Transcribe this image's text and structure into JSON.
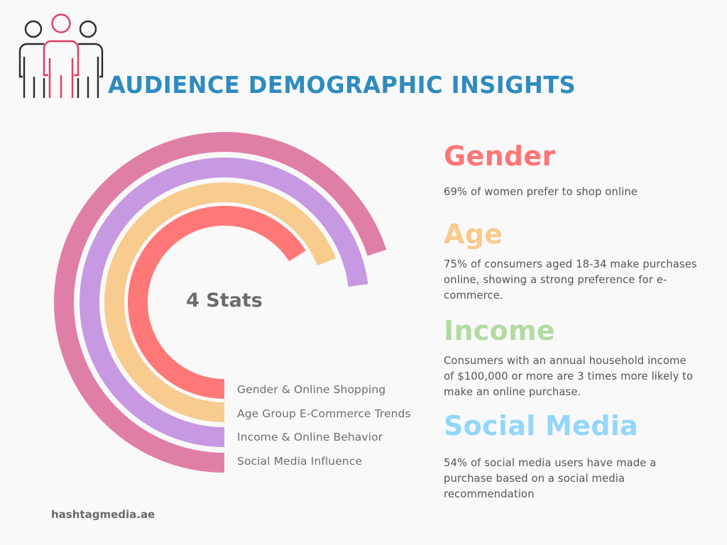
{
  "header": {
    "title": "AUDIENCE DEMOGRAPHIC INSIGHTS",
    "icon": "people-group-icon",
    "title_color": "#2e8bbf"
  },
  "chart": {
    "center_label": "4 Stats",
    "legend": [
      "Gender & Online Shopping",
      "Age Group E-Commerce Trends",
      "Income & Online Behavior",
      "Social Media Influence"
    ]
  },
  "chart_data": {
    "type": "radial-bar",
    "title": "4 Stats",
    "categories": [
      "Gender & Online Shopping",
      "Age Group E-Commerce Trends",
      "Income & Online Behavior",
      "Social Media Influence"
    ],
    "values": [
      66,
      69,
      73,
      70
    ],
    "value_unit": "% of full circle (estimated from arc sweep)",
    "start_angle": "6 o'clock, clockwise",
    "colors": [
      "#ff7878",
      "#f8cb8e",
      "#c699e2",
      "#e07fa5"
    ],
    "legend_position": "bottom-right of rings",
    "xlabel": "",
    "ylabel": ""
  },
  "stats": [
    {
      "heading": "Gender",
      "color": "#ff7575",
      "text": "69% of women prefer to shop online"
    },
    {
      "heading": "Age",
      "color": "#f8cb8e",
      "text": "75% of consumers aged 18-34 make purchases online, showing a strong preference for e-commerce."
    },
    {
      "heading": "Income",
      "color": "#b2dba1",
      "text": "Consumers with an annual household income of $100,000 or more are 3 times more likely to make an online purchase."
    },
    {
      "heading": "Social Media",
      "color": "#93d6fb",
      "text": "54% of social media users have made a purchase based on a social media recommendation"
    }
  ],
  "footer": {
    "website": "hashtagmedia.ae"
  }
}
